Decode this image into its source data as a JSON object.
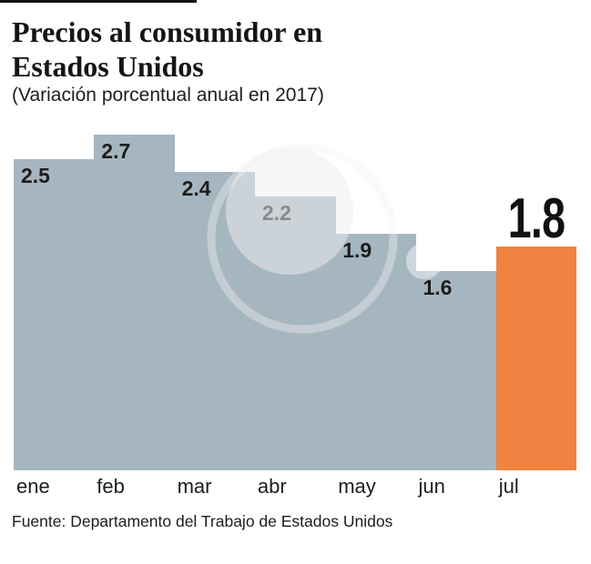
{
  "header": {
    "title_line1": "Precios al consumidor en",
    "title_line2": "Estados Unidos",
    "subtitle": "(Variación porcentual anual en 2017)"
  },
  "chart_data": {
    "type": "bar",
    "title": "Precios al consumidor en Estados Unidos",
    "subtitle": "(Variación porcentual anual en 2017)",
    "categories": [
      "ene",
      "feb",
      "mar",
      "abr",
      "may",
      "jun",
      "jul"
    ],
    "values": [
      2.5,
      2.7,
      2.4,
      2.2,
      1.9,
      1.6,
      1.8
    ],
    "value_labels": [
      "2.5",
      "2.7",
      "2.4",
      "2.2",
      "1.9",
      "1.6",
      "1.8"
    ],
    "highlight_index": 6,
    "highlight_category": "jul",
    "highlight_value": 1.8,
    "ylim": [
      0,
      2.7
    ],
    "grid": false,
    "legend": false,
    "bar_color": "#a6b6c1",
    "highlight_color": "#f08341",
    "label_color": "#1d1d1b"
  },
  "footer": {
    "source": "Fuente: Departamento del Trabajo de Estados Unidos"
  }
}
